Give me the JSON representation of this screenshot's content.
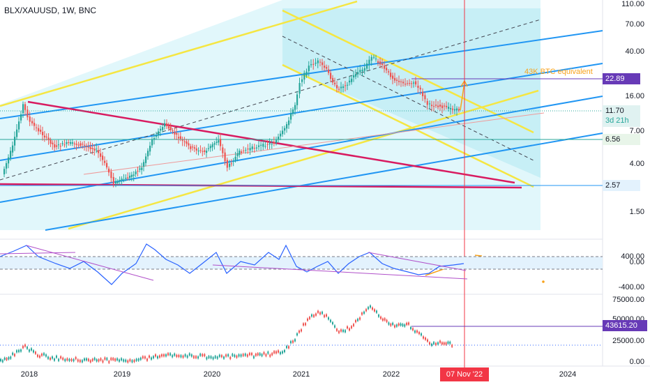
{
  "header": {
    "symbol": "BLX/XAUUSD, 1W, BNC"
  },
  "price_axis": [
    "110.00",
    "70.00",
    "40.00",
    "16.00",
    "7.00",
    "4.00",
    "1.50"
  ],
  "price_badges": {
    "top_level": {
      "value": "22.89",
      "bg": "#673ab7",
      "fg": "#ffffff"
    },
    "last": {
      "value": "11.70",
      "countdown": "3d 21h",
      "bg": "#e0f2f1",
      "fg": "#131722"
    },
    "green_level": {
      "value": "6.56",
      "bg": "#e8f5e9",
      "fg": "#131722"
    },
    "low_level": {
      "value": "2.57",
      "bg": "#e3f2fd",
      "fg": "#131722"
    }
  },
  "annotation": {
    "text": "43K BTC equivalent",
    "color": "#f7a21b"
  },
  "rsi_axis": [
    "400.00",
    "0.00",
    "-400.00"
  ],
  "volume_axis": [
    "75000.00",
    "50000.00",
    "25000.00",
    "0.00"
  ],
  "volume_badge": {
    "value": "43615.20",
    "bg": "#673ab7",
    "fg": "#ffffff"
  },
  "time_axis": [
    "2018",
    "2019",
    "2020",
    "2021",
    "2022",
    "2024"
  ],
  "crosshair_date": "07 Nov '22",
  "colors": {
    "up": "#26a69a",
    "down": "#ef5350",
    "channel_yellow": "#f5e642",
    "channel_blue": "#2196f3",
    "wedge_pink": "#d81b60",
    "fill_cyan": "#c9f1f8",
    "crosshair": "#f23645",
    "rsi": "#2962ff",
    "trend_purple": "#b04fc9"
  }
}
